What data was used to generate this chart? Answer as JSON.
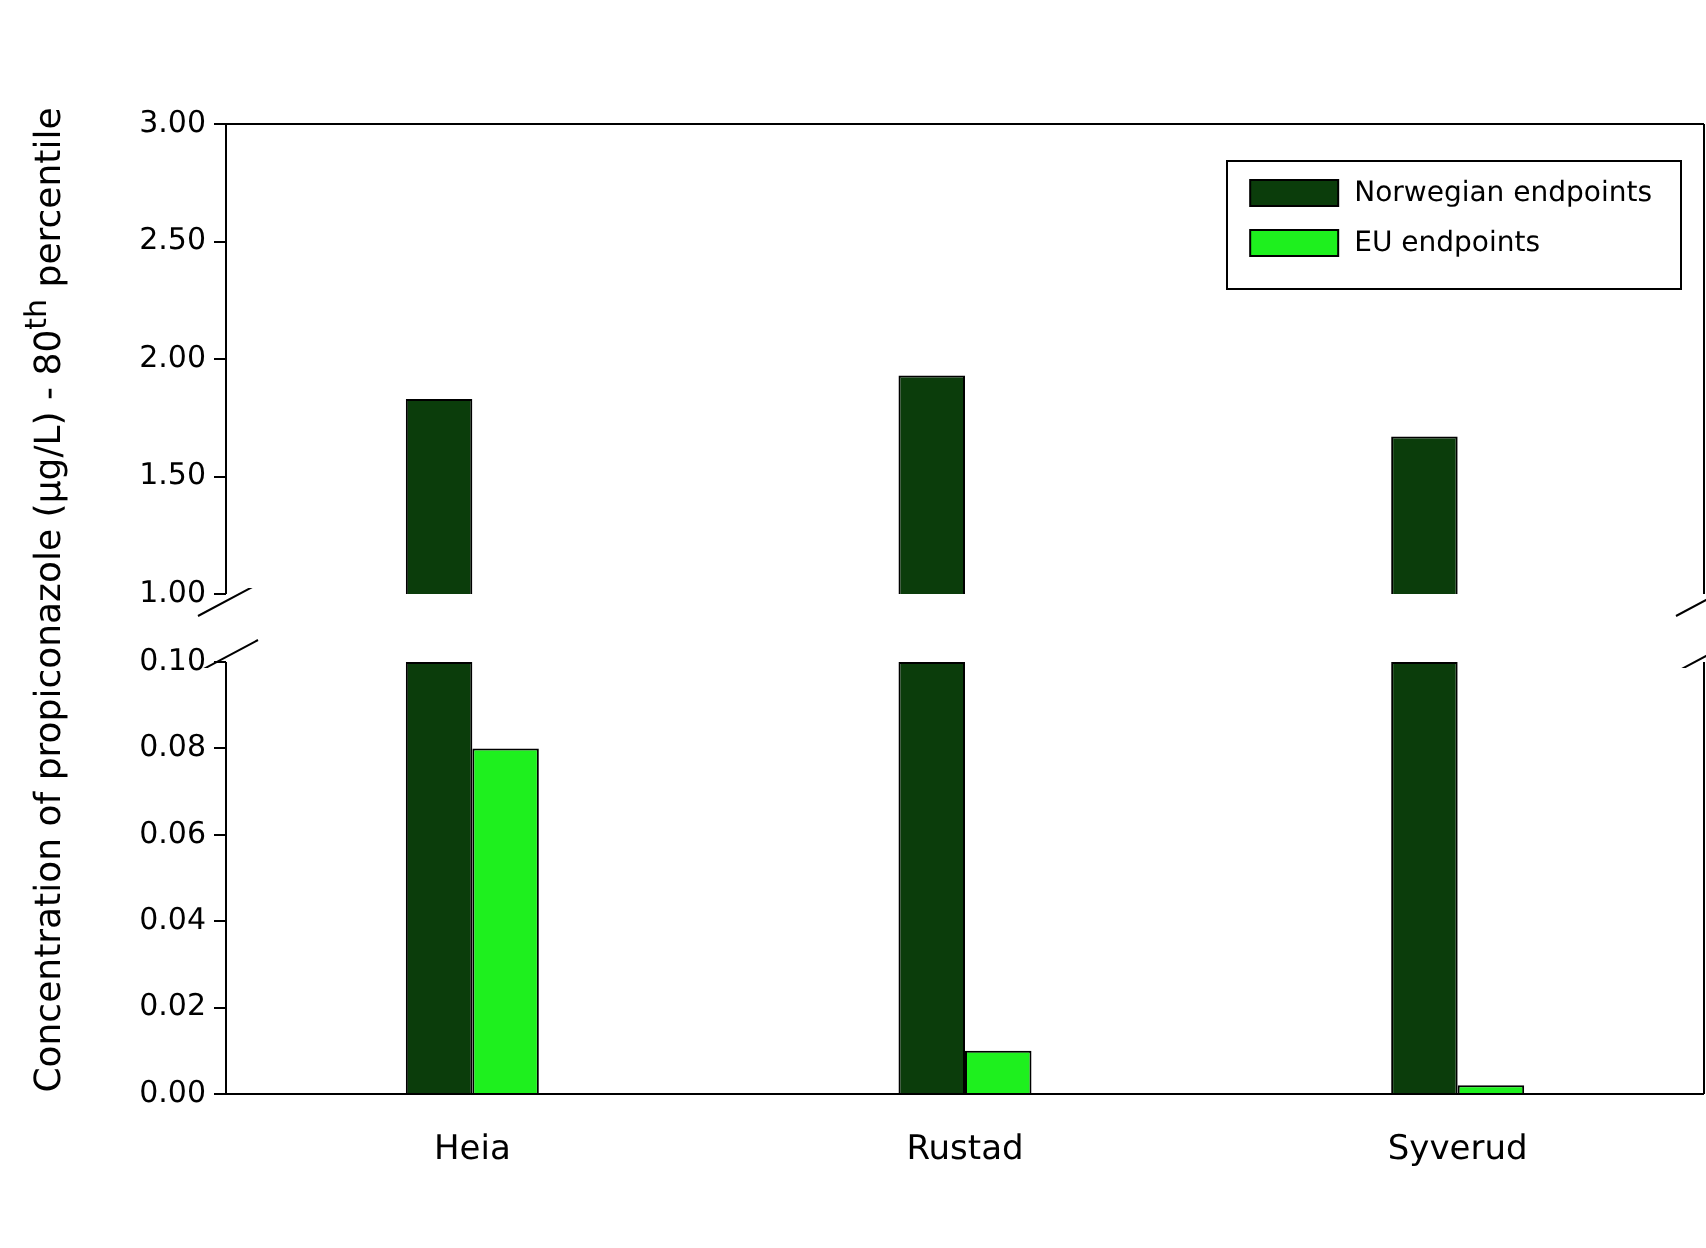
{
  "chart_data": [
    {
      "type": "bar",
      "ylabel": "Concentration of propiconazole (µg/L) - 80$^{th}$ percentile",
      "categories": [
        null,
        null,
        null
      ],
      "series": [
        {
          "name": "Norwegian endpoints",
          "color": "#0b3d0b",
          "values": [
            1.83,
            1.93,
            1.67
          ]
        },
        {
          "name": "EU endpoints",
          "color": "#1ef01e",
          "values": [
            null,
            null,
            null
          ]
        }
      ],
      "ylim": [
        1,
        3
      ],
      "yticks": [
        {
          "value": 1,
          "label": "1.00"
        },
        {
          "value": 1.5,
          "label": "1.50"
        },
        {
          "value": 2,
          "label": "2.00"
        },
        {
          "value": 2.5,
          "label": "2.50"
        },
        {
          "value": 3,
          "label": "3.00"
        }
      ],
      "grid": false,
      "legend": "top right",
      "tick_labels": "y"
    },
    {
      "type": "bar",
      "categories": [
        "Heia",
        "Rustad",
        "Syverud"
      ],
      "series": [
        {
          "color": "#0b3d0b",
          "values": [
            0.1,
            0.1,
            0.1
          ]
        },
        {
          "color": "#1ef01e",
          "values": [
            0.08,
            0.01,
            0.002
          ]
        }
      ],
      "ylim": [
        0,
        0.1
      ],
      "yticks": [
        {
          "value": 0,
          "label": "0.00"
        },
        {
          "value": 0.02,
          "label": "0.02"
        },
        {
          "value": 0.04,
          "label": "0.04"
        },
        {
          "value": 0.06,
          "label": "0.06"
        },
        {
          "value": 0.08,
          "label": "0.08"
        },
        {
          "value": 0.1,
          "label": "0.10"
        }
      ],
      "grid": false
    }
  ]
}
